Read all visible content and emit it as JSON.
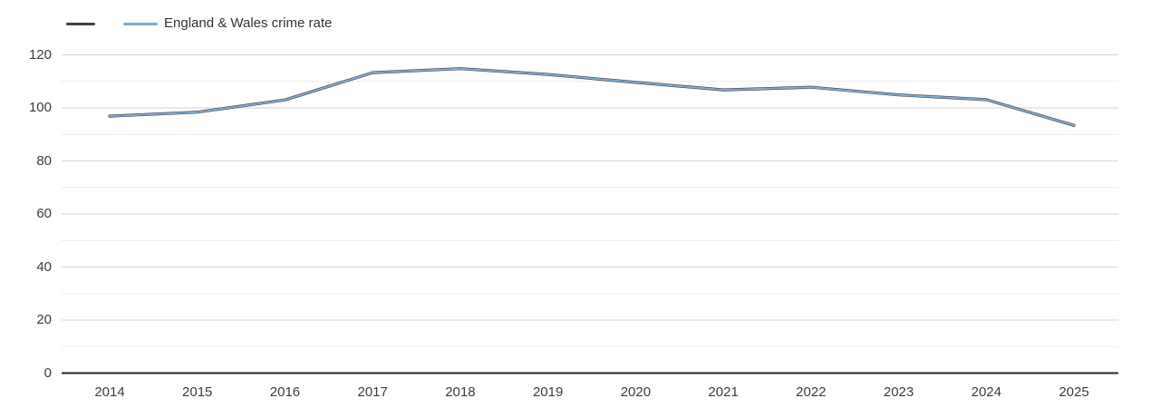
{
  "chart": {
    "legend": {
      "items": [
        {
          "label": "",
          "color": "#4a3c44"
        },
        {
          "label": "England & Wales crime rate",
          "color": "#7cadd2"
        }
      ]
    },
    "colors": {
      "background": "#ffffff",
      "axis_line": "#262626",
      "major_grid": "#d6d6d6",
      "minor_grid": "#ececec",
      "tick_text": "#3d3d3d",
      "legend_text": "#333333"
    }
  },
  "chart_data": {
    "type": "line",
    "title": "",
    "xlabel": "",
    "ylabel": "",
    "x": [
      2014,
      2015,
      2016,
      2017,
      2018,
      2019,
      2020,
      2021,
      2022,
      2023,
      2024,
      2025
    ],
    "series": [
      {
        "name": "",
        "color": "#4a3c44",
        "values": [
          96.9,
          98.4,
          103.0,
          113.3,
          114.8,
          112.6,
          109.6,
          106.8,
          107.8,
          104.9,
          103.1,
          93.4
        ]
      },
      {
        "name": "England & Wales crime rate",
        "color": "#7cadd2",
        "values": [
          96.9,
          98.4,
          103.0,
          113.3,
          114.8,
          112.6,
          109.6,
          106.8,
          107.8,
          104.9,
          103.1,
          93.4
        ]
      }
    ],
    "ylim": [
      0,
      120
    ],
    "yticks": [
      0,
      20,
      40,
      60,
      80,
      100,
      120
    ],
    "minor_yticks": [
      10,
      30,
      50,
      70,
      90,
      110
    ],
    "grid": true,
    "legend_position": "top-left"
  }
}
